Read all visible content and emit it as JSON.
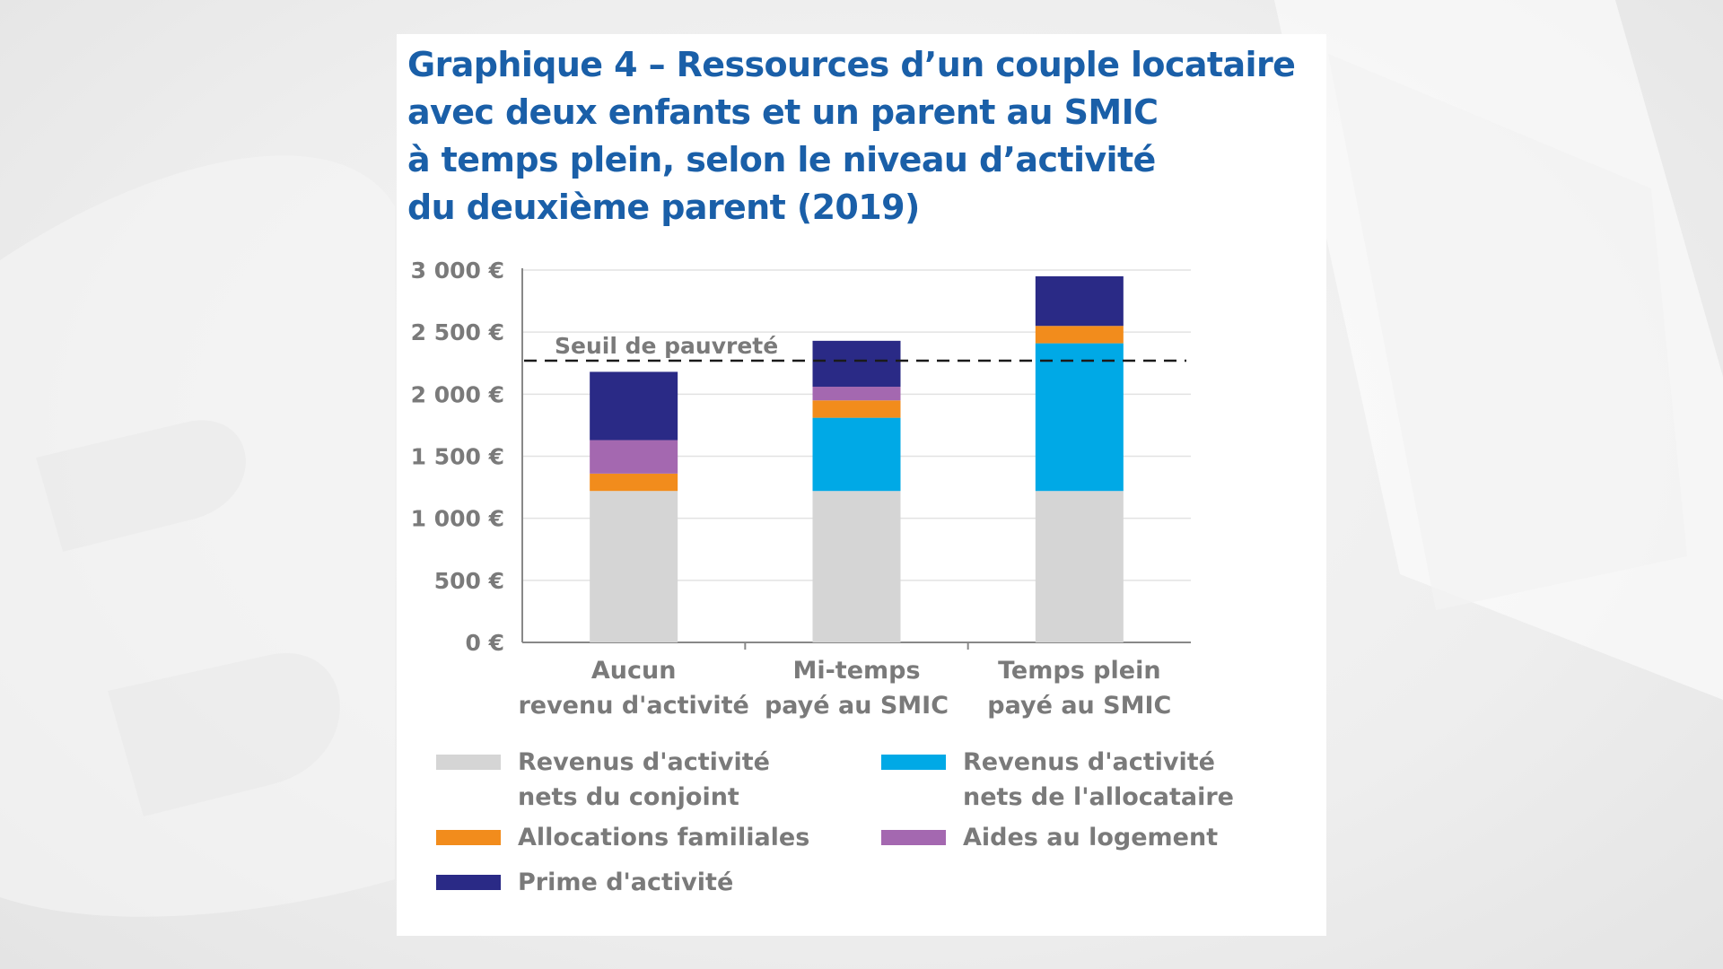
{
  "chart_data": {
    "type": "bar",
    "stacked": true,
    "title_lines": [
      "Graphique 4 – Ressources d’un couple locataire",
      "avec deux enfants et un parent au SMIC",
      "à temps plein, selon le niveau d’activité",
      "du deuxième parent (2019)"
    ],
    "categories": [
      [
        "Aucun",
        "revenu d'activité"
      ],
      [
        "Mi-temps",
        "payé au SMIC"
      ],
      [
        "Temps plein",
        "payé au SMIC"
      ]
    ],
    "ylim": [
      0,
      3000
    ],
    "yticks": [
      0,
      500,
      1000,
      1500,
      2000,
      2500,
      3000
    ],
    "ytick_labels": [
      "0 €",
      "500 €",
      "1 000 €",
      "1 500 €",
      "2 000 €",
      "2 500 €",
      "3 000 €"
    ],
    "grid": true,
    "series": [
      {
        "name": "Revenus d'activité nets du conjoint",
        "name_lines": [
          "Revenus d'activité",
          "nets du conjoint"
        ],
        "color": "#d5d5d5",
        "values": [
          1220,
          1220,
          1220
        ]
      },
      {
        "name": "Revenus d'activité nets de l'allocataire",
        "name_lines": [
          "Revenus d'activité",
          "nets de l'allocataire"
        ],
        "color": "#00a9e6",
        "values": [
          0,
          590,
          1190
        ]
      },
      {
        "name": "Allocations familiales",
        "name_lines": [
          "Allocations familiales"
        ],
        "color": "#f28c1c",
        "values": [
          140,
          140,
          140
        ]
      },
      {
        "name": "Aides au logement",
        "name_lines": [
          "Aides au logement"
        ],
        "color": "#a468b0",
        "values": [
          270,
          110,
          0
        ]
      },
      {
        "name": "Prime d'activité",
        "name_lines": [
          "Prime d'activité"
        ],
        "color": "#2a2a86",
        "values": [
          550,
          370,
          400
        ]
      }
    ],
    "legend_order": [
      0,
      1,
      2,
      3,
      4
    ],
    "reference_line": {
      "label": "Seuil de pauvreté",
      "value": 2270,
      "style": "dashed"
    },
    "legend_position": "bottom"
  }
}
